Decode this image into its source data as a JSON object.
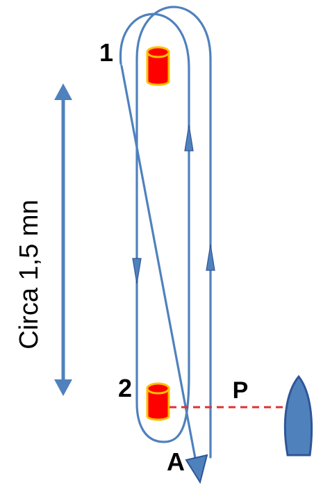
{
  "labels": {
    "mark_1": "1",
    "mark_2": "2",
    "start_pin": "P",
    "finish": "A",
    "distance": "Circa 1,5 mn"
  },
  "colors": {
    "course_line": "#4f81bd",
    "mark_fill": "#ff0000",
    "mark_outline": "#ffc000",
    "start_line": "#e03030",
    "boat_fill": "#4f81bd",
    "boat_outline": "#2f5597"
  },
  "icons": {
    "mark": "buoy-icon",
    "committee_boat": "boat-icon",
    "distance_arrow": "double-arrow-icon"
  }
}
